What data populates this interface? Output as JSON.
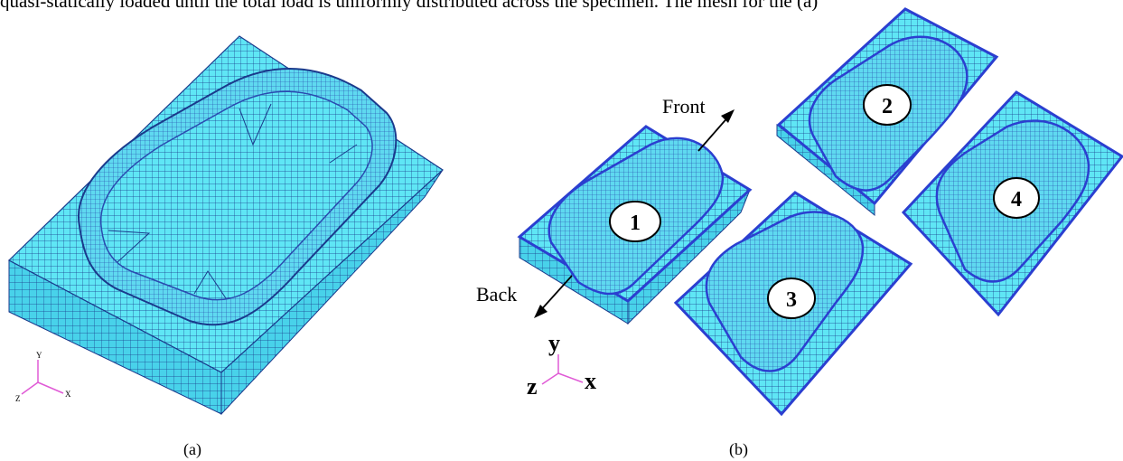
{
  "caption_fragment": "quasi-statically loaded until the total load is uniformly distributed across the specimen. The mesh for the (a)",
  "panel_a": {
    "label": "(a)",
    "triad": {
      "y": "Y",
      "x": "X",
      "z": "Z"
    }
  },
  "panel_b": {
    "label": "(b)",
    "front_label": "Front",
    "back_label": "Back",
    "triad": {
      "y": "y",
      "x": "x",
      "z": "z"
    },
    "parts": [
      "1",
      "2",
      "3",
      "4"
    ]
  },
  "colors": {
    "mesh_fill": "#5fe6f5",
    "mesh_line": "#1a3a8c",
    "mesh_dark": "#2b3fd0",
    "triad": "#e05ad6"
  }
}
